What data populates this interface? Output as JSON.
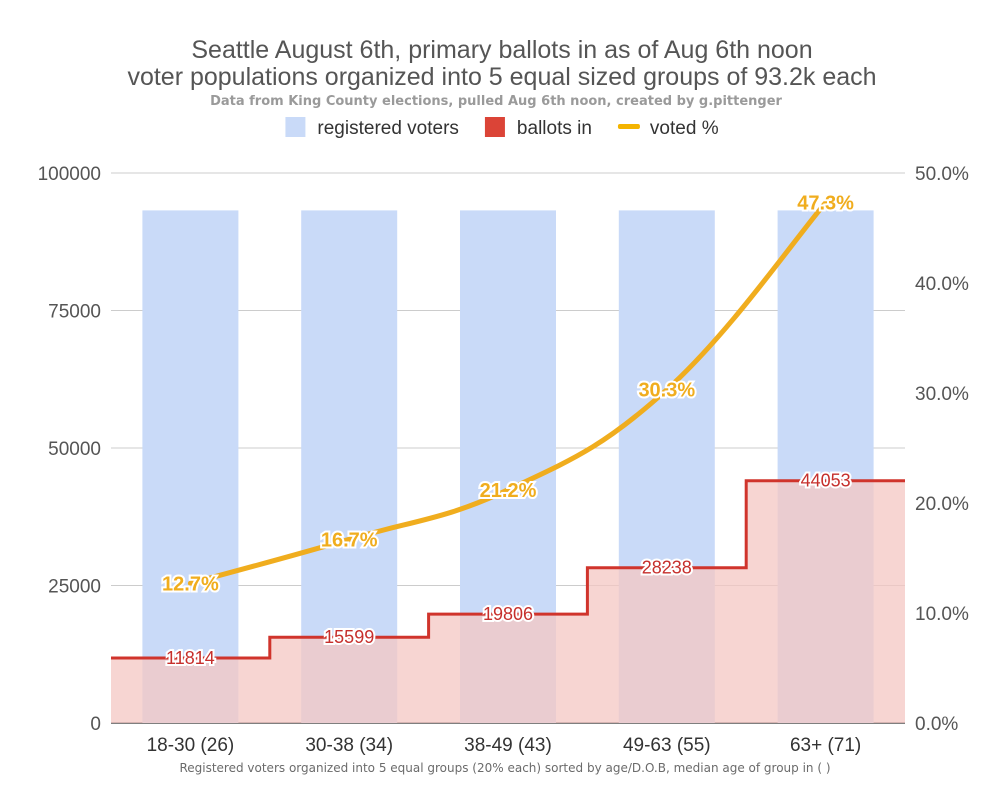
{
  "chart_data": {
    "type": "bar",
    "title": "Seattle August 6th, primary ballots in as of Aug 6th noon",
    "title_line2": "voter populations organized into 5 equal sized groups of 93.2k each",
    "subtitle": "Data from King County elections, pulled Aug 6th noon, created by g.pittenger",
    "xlabel": "Registered voters organized into 5 equal groups (20% each) sorted by age/D.O.B, median age of group in ( )",
    "categories": [
      "18-30 (26)",
      "30-38 (34)",
      "38-49 (43)",
      "49-63 (55)",
      "63+ (71)"
    ],
    "legend": {
      "position": "top",
      "items": [
        {
          "label": "registered voters",
          "color": "#c9daf8",
          "shape": "square"
        },
        {
          "label": "ballots in",
          "color": "#db4437",
          "shape": "square"
        },
        {
          "label": "voted %",
          "color": "#f4b400",
          "shape": "line"
        }
      ]
    },
    "y_left": {
      "min": 0,
      "max": 100000,
      "ticks": [
        "0",
        "25000",
        "50000",
        "75000",
        "100000"
      ],
      "tick_values": [
        0,
        25000,
        50000,
        75000,
        100000
      ]
    },
    "y_right": {
      "min": 0,
      "max": 0.5,
      "ticks": [
        "0.0%",
        "10.0%",
        "20.0%",
        "30.0%",
        "40.0%",
        "50.0%"
      ],
      "tick_values": [
        0,
        0.1,
        0.2,
        0.3,
        0.4,
        0.5
      ]
    },
    "grid": true,
    "series": [
      {
        "name": "registered voters",
        "type": "bar",
        "axis": "left",
        "color": "#c9daf8",
        "values": [
          93200,
          93200,
          93200,
          93200,
          93200
        ]
      },
      {
        "name": "ballots in",
        "type": "stepped-area",
        "axis": "left",
        "color": "#db4437",
        "fill": "#f4c7c3",
        "values": [
          11814,
          15599,
          19806,
          28238,
          44053
        ],
        "labels": [
          "11814",
          "15599",
          "19806",
          "28238",
          "44053"
        ]
      },
      {
        "name": "voted %",
        "type": "line",
        "axis": "right",
        "color": "#f0ad1e",
        "values": [
          0.127,
          0.167,
          0.212,
          0.303,
          0.473
        ],
        "labels": [
          "12.7%",
          "16.7%",
          "21.2%",
          "30.3%",
          "47.3%"
        ]
      }
    ]
  }
}
